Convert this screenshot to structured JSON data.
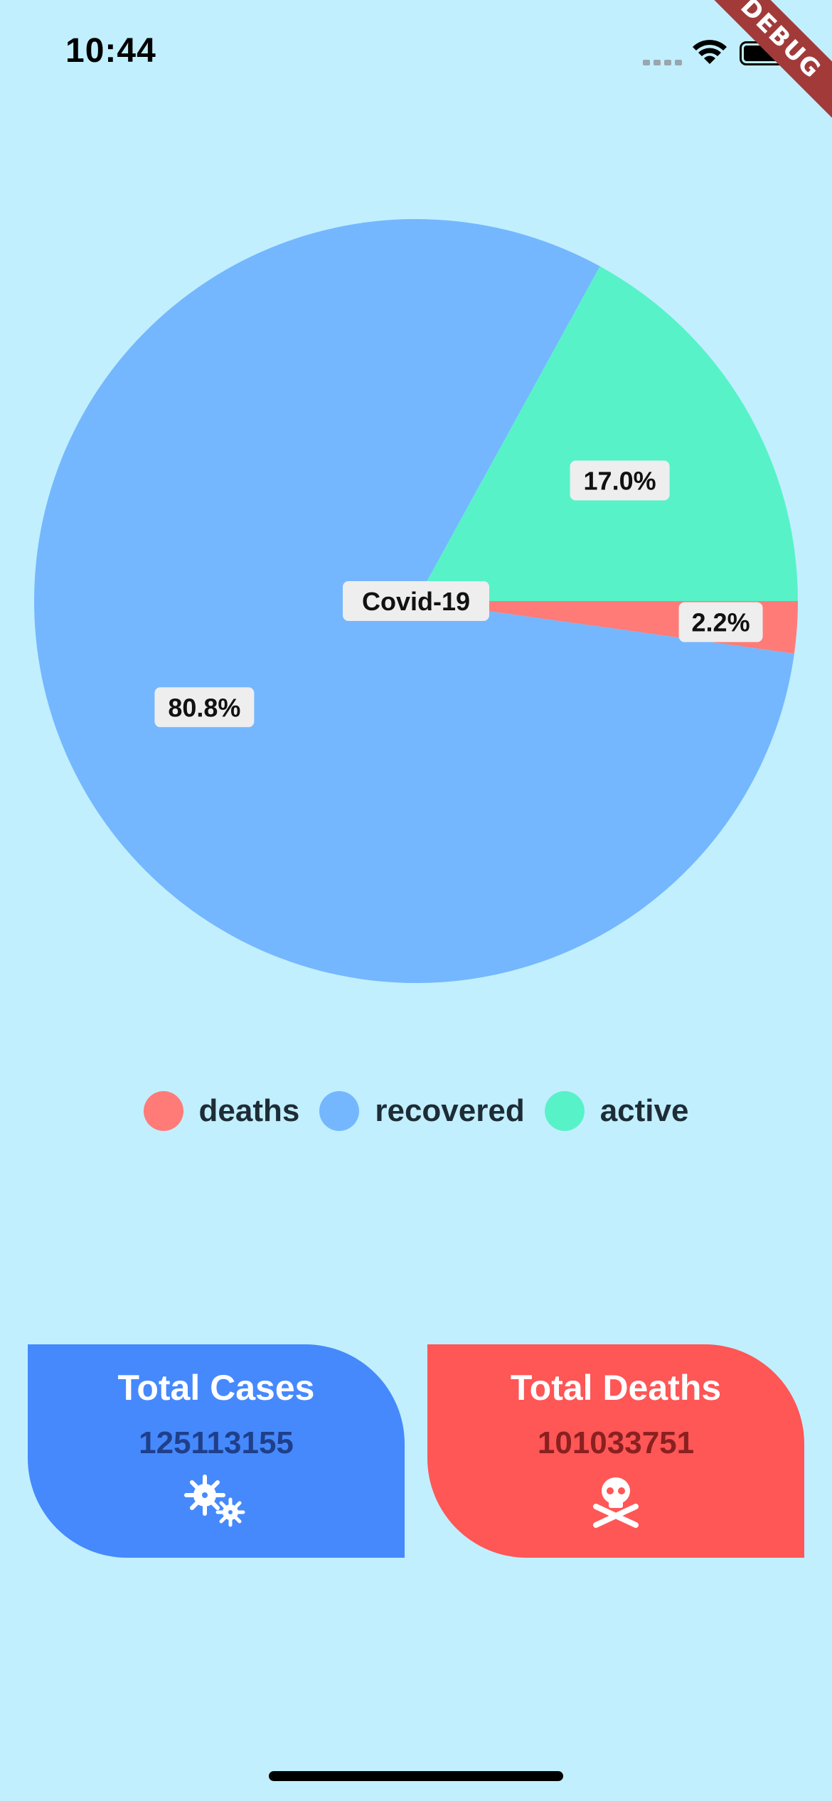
{
  "status_bar": {
    "time": "10:44"
  },
  "debug_banner": "DEBUG",
  "chart_data": {
    "type": "pie",
    "center_label": "Covid-19",
    "categories": [
      "deaths",
      "recovered",
      "active"
    ],
    "values": [
      2.2,
      80.8,
      17.0
    ],
    "labels": [
      "2.2%",
      "80.8%",
      "17.0%"
    ],
    "colors": [
      "#ff7b78",
      "#74b7fe",
      "#58f2c8"
    ],
    "legend_position": "bottom"
  },
  "legend": [
    {
      "label": "deaths",
      "color": "#ff7b78"
    },
    {
      "label": "recovered",
      "color": "#74b7fe"
    },
    {
      "label": "active",
      "color": "#58f2c8"
    }
  ],
  "cards": {
    "cases": {
      "title": "Total Cases",
      "value": "125113155",
      "icon": "virus-icon"
    },
    "deaths": {
      "title": "Total Deaths",
      "value": "101033751",
      "icon": "skull-crossbones-icon"
    }
  }
}
